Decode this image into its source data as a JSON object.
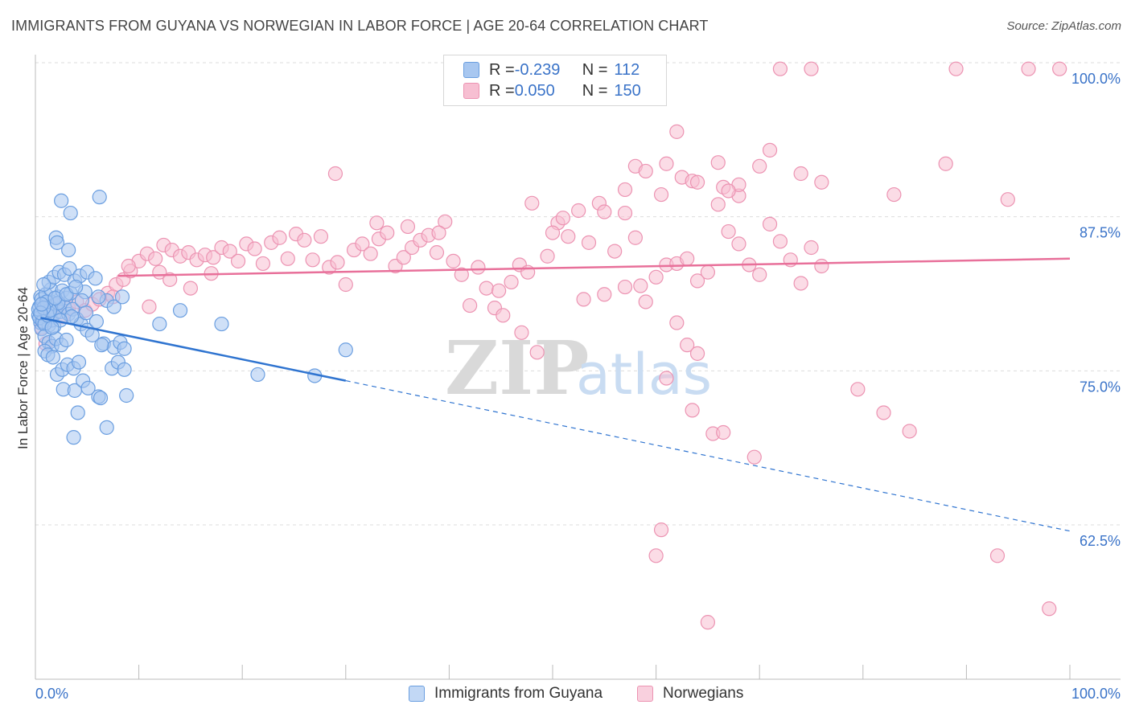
{
  "header": {
    "title": "IMMIGRANTS FROM GUYANA VS NORWEGIAN IN LABOR FORCE | AGE 20-64 CORRELATION CHART",
    "source": "Source: ZipAtlas.com"
  },
  "legend_box": {
    "rows": [
      {
        "r_label": "R = ",
        "r_value": "-0.239",
        "n_label": "N = ",
        "n_value": "112"
      },
      {
        "r_label": "R = ",
        "r_value": "0.050",
        "n_label": "N = ",
        "n_value": "150"
      }
    ]
  },
  "watermark": {
    "zip": "ZIP",
    "atlas": "atlas"
  },
  "colors": {
    "blue_fill": "#a8c7f0",
    "blue_stroke": "#6a9ee0",
    "blue_line": "#2f74d0",
    "pink_fill": "#f7bfd2",
    "pink_stroke": "#ec93b2",
    "pink_line": "#e8709a",
    "axis_label": "#3a73c8",
    "grid": "#dddddd"
  },
  "chart_data": {
    "type": "scatter",
    "title": "IMMIGRANTS FROM GUYANA VS NORWEGIAN IN LABOR FORCE | AGE 20-64 CORRELATION CHART",
    "xlabel": "",
    "ylabel": "In Labor Force | Age 20-64",
    "xlim": [
      0,
      100
    ],
    "ylim": [
      50,
      100
    ],
    "x_tick_labels": [
      "0.0%",
      "100.0%"
    ],
    "y_ticks": [
      62.5,
      75.0,
      87.5,
      100.0
    ],
    "y_tick_labels": [
      "62.5%",
      "75.0%",
      "87.5%",
      "100.0%"
    ],
    "grid": true,
    "legend_position": "bottom",
    "series": [
      {
        "name": "Immigrants from Guyana",
        "color": "#6a9ee0",
        "r": -0.239,
        "n": 112,
        "trend": {
          "x0": 0.5,
          "y0": 79.3,
          "x1": 30.0,
          "y1": 74.2,
          "x_dash_end": 100.0,
          "y_dash_end": 62.0
        },
        "points": [
          [
            0.3,
            79.5
          ],
          [
            0.4,
            80.2
          ],
          [
            0.5,
            78.9
          ],
          [
            0.6,
            79.8
          ],
          [
            0.7,
            80.5
          ],
          [
            0.8,
            79.2
          ],
          [
            0.9,
            79.9
          ],
          [
            1.0,
            80.3
          ],
          [
            0.5,
            81.0
          ],
          [
            0.6,
            78.4
          ],
          [
            1.1,
            79.6
          ],
          [
            1.2,
            80.1
          ],
          [
            1.3,
            78.7
          ],
          [
            1.4,
            79.4
          ],
          [
            1.5,
            80.6
          ],
          [
            1.6,
            79.1
          ],
          [
            1.7,
            80.0
          ],
          [
            1.8,
            78.6
          ],
          [
            1.9,
            79.7
          ],
          [
            2.0,
            80.4
          ],
          [
            0.4,
            79.3
          ],
          [
            0.7,
            79.0
          ],
          [
            0.9,
            78.8
          ],
          [
            1.2,
            79.5
          ],
          [
            0.3,
            80.0
          ],
          [
            0.6,
            80.8
          ],
          [
            1.0,
            81.2
          ],
          [
            1.5,
            81.6
          ],
          [
            2.2,
            81.0
          ],
          [
            2.6,
            81.5
          ],
          [
            3.0,
            80.9
          ],
          [
            3.4,
            81.3
          ],
          [
            2.4,
            79.8
          ],
          [
            2.8,
            80.2
          ],
          [
            3.2,
            79.6
          ],
          [
            3.6,
            80.0
          ],
          [
            4.0,
            79.2
          ],
          [
            4.4,
            78.8
          ],
          [
            5.0,
            78.3
          ],
          [
            5.5,
            77.9
          ],
          [
            1.3,
            82.2
          ],
          [
            1.8,
            82.6
          ],
          [
            2.3,
            83.0
          ],
          [
            2.8,
            82.8
          ],
          [
            3.3,
            83.3
          ],
          [
            3.8,
            82.3
          ],
          [
            4.3,
            82.7
          ],
          [
            5.0,
            83.0
          ],
          [
            5.8,
            82.5
          ],
          [
            0.8,
            82.0
          ],
          [
            0.9,
            77.8
          ],
          [
            1.3,
            77.3
          ],
          [
            1.6,
            77.0
          ],
          [
            2.0,
            77.6
          ],
          [
            2.5,
            77.1
          ],
          [
            3.0,
            77.5
          ],
          [
            0.9,
            76.6
          ],
          [
            1.2,
            76.3
          ],
          [
            1.7,
            76.1
          ],
          [
            2.1,
            74.7
          ],
          [
            2.6,
            75.1
          ],
          [
            3.1,
            75.5
          ],
          [
            3.7,
            75.2
          ],
          [
            4.2,
            75.7
          ],
          [
            2.7,
            73.5
          ],
          [
            3.8,
            73.4
          ],
          [
            4.6,
            74.2
          ],
          [
            5.1,
            73.6
          ],
          [
            6.1,
            72.9
          ],
          [
            6.3,
            72.8
          ],
          [
            6.9,
            70.4
          ],
          [
            4.1,
            71.6
          ],
          [
            3.7,
            69.6
          ],
          [
            2.0,
            85.8
          ],
          [
            2.1,
            85.4
          ],
          [
            3.2,
            84.8
          ],
          [
            2.5,
            88.8
          ],
          [
            3.4,
            87.8
          ],
          [
            6.2,
            89.1
          ],
          [
            6.6,
            77.2
          ],
          [
            7.6,
            76.9
          ],
          [
            8.2,
            77.3
          ],
          [
            8.6,
            76.8
          ],
          [
            7.4,
            75.2
          ],
          [
            8.0,
            75.7
          ],
          [
            8.6,
            75.1
          ],
          [
            8.8,
            73.0
          ],
          [
            6.4,
            77.1
          ],
          [
            6.9,
            80.7
          ],
          [
            7.6,
            80.2
          ],
          [
            8.4,
            81.0
          ],
          [
            12.0,
            78.8
          ],
          [
            14.0,
            79.9
          ],
          [
            18.0,
            78.8
          ],
          [
            21.5,
            74.7
          ],
          [
            27.0,
            74.6
          ],
          [
            30.0,
            76.7
          ],
          [
            5.9,
            79.0
          ],
          [
            6.1,
            81.0
          ],
          [
            4.8,
            81.4
          ],
          [
            4.5,
            80.7
          ],
          [
            2.2,
            80.5
          ],
          [
            1.4,
            79.9
          ],
          [
            1.1,
            80.6
          ],
          [
            0.8,
            80.1
          ],
          [
            0.5,
            79.7
          ],
          [
            1.9,
            80.9
          ],
          [
            3.5,
            79.4
          ],
          [
            4.9,
            79.7
          ],
          [
            2.4,
            79.1
          ],
          [
            1.6,
            78.5
          ],
          [
            3.0,
            81.2
          ],
          [
            3.9,
            81.8
          ],
          [
            0.6,
            80.4
          ]
        ]
      },
      {
        "name": "Norwegians",
        "color": "#ec93b2",
        "r": 0.05,
        "n": 150,
        "trend": {
          "x0": 8.0,
          "y0": 82.7,
          "x1": 100.0,
          "y1": 84.1
        },
        "points": [
          [
            0.6,
            78.5
          ],
          [
            1.0,
            77.2
          ],
          [
            1.5,
            79.8
          ],
          [
            2.0,
            80.3
          ],
          [
            2.6,
            79.4
          ],
          [
            3.2,
            80.1
          ],
          [
            4.0,
            80.6
          ],
          [
            4.8,
            79.9
          ],
          [
            5.5,
            80.4
          ],
          [
            6.2,
            80.8
          ],
          [
            7.0,
            81.3
          ],
          [
            7.8,
            82.0
          ],
          [
            8.5,
            82.4
          ],
          [
            9.2,
            83.1
          ],
          [
            10.0,
            83.9
          ],
          [
            10.8,
            84.5
          ],
          [
            11.6,
            84.1
          ],
          [
            12.4,
            85.2
          ],
          [
            13.2,
            84.8
          ],
          [
            14.0,
            84.3
          ],
          [
            14.8,
            84.6
          ],
          [
            15.6,
            84.0
          ],
          [
            16.4,
            84.4
          ],
          [
            17.2,
            84.2
          ],
          [
            18.0,
            85.0
          ],
          [
            18.8,
            84.7
          ],
          [
            19.6,
            83.9
          ],
          [
            20.4,
            85.3
          ],
          [
            21.2,
            84.9
          ],
          [
            22.0,
            83.7
          ],
          [
            22.8,
            85.4
          ],
          [
            23.6,
            85.8
          ],
          [
            24.4,
            84.1
          ],
          [
            25.2,
            86.1
          ],
          [
            26.0,
            85.6
          ],
          [
            26.8,
            84.0
          ],
          [
            27.6,
            85.9
          ],
          [
            28.4,
            83.4
          ],
          [
            29.2,
            83.8
          ],
          [
            30.0,
            82.0
          ],
          [
            30.8,
            84.8
          ],
          [
            31.6,
            85.3
          ],
          [
            32.4,
            84.5
          ],
          [
            33.2,
            85.7
          ],
          [
            34.0,
            86.2
          ],
          [
            34.8,
            83.5
          ],
          [
            35.6,
            84.2
          ],
          [
            36.4,
            85.0
          ],
          [
            37.2,
            85.6
          ],
          [
            38.0,
            86.0
          ],
          [
            38.8,
            84.6
          ],
          [
            39.6,
            87.1
          ],
          [
            40.4,
            83.9
          ],
          [
            41.2,
            82.8
          ],
          [
            42.0,
            80.3
          ],
          [
            42.8,
            83.4
          ],
          [
            43.6,
            81.7
          ],
          [
            44.4,
            80.1
          ],
          [
            45.2,
            79.5
          ],
          [
            46.0,
            82.2
          ],
          [
            46.8,
            83.6
          ],
          [
            47.6,
            83.0
          ],
          [
            44.8,
            81.5
          ],
          [
            47.0,
            78.1
          ],
          [
            48.5,
            76.5
          ],
          [
            49.5,
            84.3
          ],
          [
            50.5,
            87.0
          ],
          [
            51.5,
            85.9
          ],
          [
            52.5,
            88.0
          ],
          [
            53.5,
            85.4
          ],
          [
            54.5,
            88.6
          ],
          [
            48.0,
            88.6
          ],
          [
            50.0,
            86.2
          ],
          [
            57.0,
            87.8
          ],
          [
            56.0,
            84.7
          ],
          [
            58.0,
            85.8
          ],
          [
            59.0,
            80.6
          ],
          [
            60.0,
            82.6
          ],
          [
            61.0,
            83.6
          ],
          [
            62.0,
            83.7
          ],
          [
            63.0,
            84.1
          ],
          [
            64.0,
            82.3
          ],
          [
            65.0,
            83.0
          ],
          [
            66.0,
            88.5
          ],
          [
            67.0,
            86.3
          ],
          [
            68.0,
            85.3
          ],
          [
            69.0,
            83.6
          ],
          [
            70.0,
            82.8
          ],
          [
            71.0,
            86.9
          ],
          [
            72.0,
            85.5
          ],
          [
            73.0,
            84.0
          ],
          [
            74.0,
            82.1
          ],
          [
            75.0,
            85.0
          ],
          [
            76.0,
            83.5
          ],
          [
            62.0,
            78.9
          ],
          [
            63.0,
            77.1
          ],
          [
            64.0,
            76.4
          ],
          [
            57.0,
            81.8
          ],
          [
            58.5,
            81.9
          ],
          [
            55.0,
            81.2
          ],
          [
            53.0,
            80.8
          ],
          [
            29.0,
            91.0
          ],
          [
            71.0,
            92.9
          ],
          [
            74.0,
            91.0
          ],
          [
            83.0,
            89.3
          ],
          [
            94.0,
            88.9
          ],
          [
            88.0,
            91.8
          ],
          [
            76.0,
            90.3
          ],
          [
            66.5,
            89.9
          ],
          [
            68.0,
            89.2
          ],
          [
            62.0,
            94.4
          ],
          [
            62.5,
            90.7
          ],
          [
            68.0,
            90.1
          ],
          [
            70.0,
            91.6
          ],
          [
            66.0,
            91.9
          ],
          [
            57.0,
            89.7
          ],
          [
            58.0,
            91.6
          ],
          [
            61.0,
            91.8
          ],
          [
            63.5,
            90.4
          ],
          [
            67.0,
            89.6
          ],
          [
            59.0,
            91.2
          ],
          [
            64.0,
            90.3
          ],
          [
            60.5,
            89.3
          ],
          [
            51.0,
            87.4
          ],
          [
            55.0,
            87.9
          ],
          [
            39.0,
            86.2
          ],
          [
            36.0,
            86.7
          ],
          [
            33.0,
            87.0
          ],
          [
            72.0,
            99.5
          ],
          [
            75.0,
            99.5
          ],
          [
            89.0,
            99.5
          ],
          [
            96.0,
            99.5
          ],
          [
            99.0,
            99.5
          ],
          [
            61.0,
            74.4
          ],
          [
            63.5,
            71.8
          ],
          [
            65.5,
            69.9
          ],
          [
            66.5,
            70.0
          ],
          [
            69.5,
            68.0
          ],
          [
            79.5,
            73.5
          ],
          [
            82.0,
            71.6
          ],
          [
            84.5,
            70.1
          ],
          [
            60.5,
            62.1
          ],
          [
            60.0,
            60.0
          ],
          [
            65.0,
            54.6
          ],
          [
            93.0,
            60.0
          ],
          [
            98.0,
            55.7
          ],
          [
            7.5,
            81.0
          ],
          [
            9.0,
            83.5
          ],
          [
            11.0,
            80.2
          ],
          [
            12.0,
            83.0
          ],
          [
            13.0,
            82.4
          ],
          [
            15.0,
            81.7
          ],
          [
            17.0,
            82.9
          ]
        ]
      }
    ]
  },
  "bottom_legend": {
    "items": [
      {
        "label": "Immigrants from Guyana"
      },
      {
        "label": "Norwegians"
      }
    ]
  }
}
